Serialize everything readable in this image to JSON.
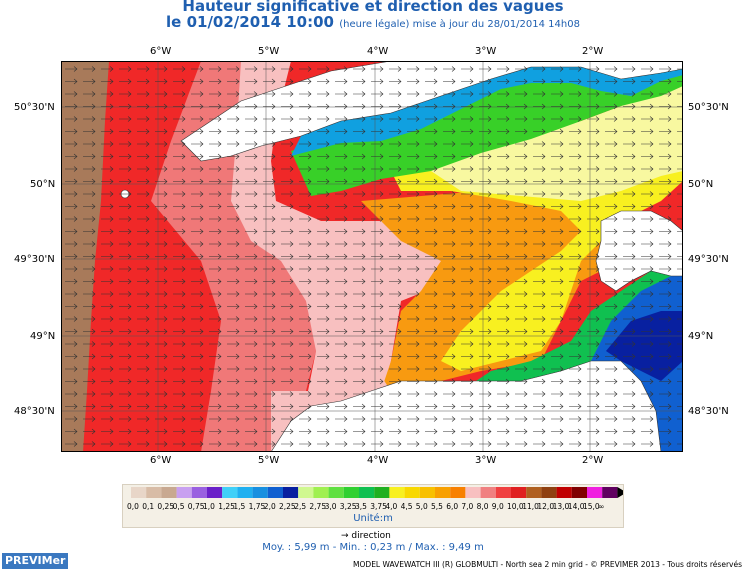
{
  "header": {
    "title_line1": "Hauteur significative et direction des vagues",
    "title_line2": "le 01/02/2014 10:00",
    "title_line2_small": "(heure légale) mise à jour du 28/01/2014 14h08"
  },
  "axes": {
    "lon_labels": [
      "6°W",
      "5°W",
      "4°W",
      "3°W",
      "2°W"
    ],
    "lat_labels": [
      "50°30'N",
      "50°N",
      "49°30'N",
      "49°N",
      "48°30'N"
    ]
  },
  "legend": {
    "labels": [
      "0,0",
      "0,1",
      "0,25",
      "0,5",
      "0,75",
      "1,0",
      "1,25",
      "1,5",
      "1,75",
      "2,0",
      "2,25",
      "2,5",
      "2,75",
      "3,0",
      "3,25",
      "3,5",
      "3,75",
      "4,0",
      "4,5",
      "5,0",
      "5,5",
      "6,0",
      "7,0",
      "8,0",
      "9,0",
      "10,0",
      "11,0",
      "12,0",
      "13,0",
      "14,0",
      "15,0",
      "∞"
    ],
    "colors": [
      "#e8d6c8",
      "#d8bca6",
      "#c8a890",
      "#c8a0f0",
      "#9a60e0",
      "#6a20c8",
      "#40d0f8",
      "#20b0f0",
      "#1890e0",
      "#1060d0",
      "#0820a0",
      "#d0f890",
      "#a0f050",
      "#60e040",
      "#30d030",
      "#10c050",
      "#20b020",
      "#f8f020",
      "#f8d800",
      "#f8c000",
      "#f8a000",
      "#f88000",
      "#f8c0c0",
      "#f08080",
      "#f04040",
      "#e02020",
      "#b06020",
      "#904010",
      "#c00000",
      "#800000",
      "#f020e0",
      "#600060"
    ],
    "unit": "Unité:m",
    "direction_label": "direction"
  },
  "stats": {
    "text": "Moy. : 5,99 m   -   Min. : 0,23 m / Max. : 9,49 m"
  },
  "branding": {
    "logo": "PREVIMer",
    "footer": "MODEL WAVEWATCH III (R) GLOBMULTI - North sea 2 min grid - © PREVIMER 2013 - Tous droits réservés"
  },
  "map": {
    "wave_direction": "east"
  }
}
